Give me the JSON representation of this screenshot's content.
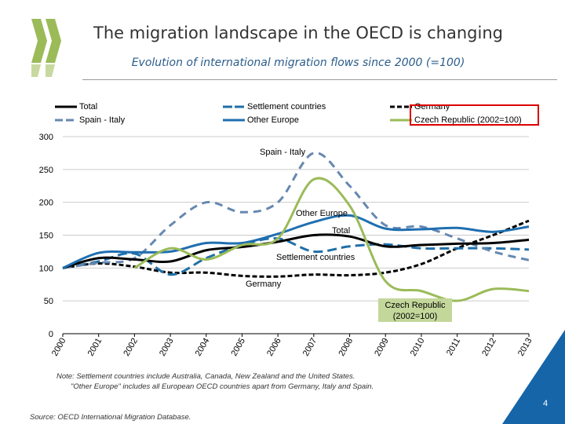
{
  "header": {
    "title": "The migration landscape in the OECD is changing",
    "subtitle": "Evolution of international migration flows since 2000 (=100)"
  },
  "footer": {
    "note1": "Note: Settlement countries include Australia, Canada, New Zealand and the United States.",
    "note2": "\"Other Europe\" includes all European OECD countries apart from Germany, Italy and Spain.",
    "source": "Source: OECD International Migration Database.",
    "page": "4"
  },
  "chart_data": {
    "type": "line",
    "x": [
      "2000",
      "2001",
      "2002",
      "2003",
      "2004",
      "2005",
      "2006",
      "2007",
      "2008",
      "2009",
      "2010",
      "2011",
      "2012",
      "2013"
    ],
    "ylim": [
      0,
      300
    ],
    "yticks": [
      "0",
      "50",
      "100",
      "150",
      "200",
      "250",
      "300"
    ],
    "grid": true,
    "legend": "top",
    "series": [
      {
        "name": "Total",
        "color": "#000000",
        "dash": "",
        "values": [
          100,
          115,
          113,
          110,
          127,
          132,
          140,
          150,
          148,
          133,
          135,
          137,
          138,
          143
        ]
      },
      {
        "name": "Settlement countries",
        "color": "#1f6fa8",
        "dash": "12 6",
        "values": [
          100,
          110,
          122,
          90,
          115,
          135,
          145,
          125,
          133,
          136,
          130,
          130,
          130,
          128
        ]
      },
      {
        "name": "Germany",
        "color": "#000000",
        "dash": "6 3",
        "values": [
          100,
          107,
          102,
          93,
          93,
          88,
          87,
          90,
          89,
          93,
          106,
          130,
          150,
          172
        ]
      },
      {
        "name": "Spain - Italy",
        "color": "#6688b0",
        "dash": "10 7",
        "values": [
          100,
          108,
          115,
          165,
          200,
          185,
          200,
          275,
          225,
          165,
          163,
          145,
          125,
          112
        ]
      },
      {
        "name": "Other Europe",
        "color": "#1f6fb0",
        "dash": "",
        "values": [
          100,
          123,
          124,
          125,
          138,
          138,
          152,
          170,
          180,
          160,
          159,
          161,
          155,
          163
        ]
      },
      {
        "name": "Czech Republic (2002=100)",
        "color": "#9bbb59",
        "dash": "",
        "values": [
          null,
          null,
          100,
          130,
          113,
          135,
          145,
          235,
          195,
          80,
          65,
          50,
          68,
          65
        ]
      }
    ],
    "annotations": [
      "Spain - Italy",
      "Other Europe",
      "Total",
      "Settlement countries",
      "Germany",
      "Czech Republic",
      "(2002=100)"
    ]
  }
}
